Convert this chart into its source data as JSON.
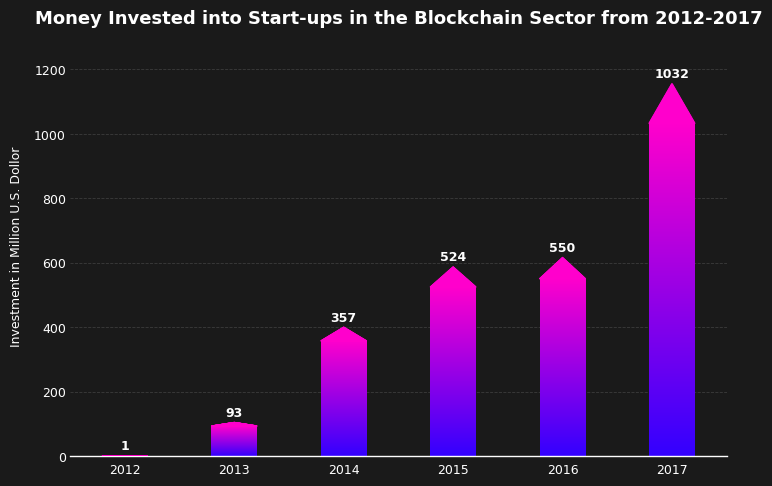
{
  "title": "Money Invested into Start-ups in the Blockchain Sector from 2012-2017",
  "ylabel": "Investment in Million U.S. Dollor",
  "categories": [
    "2012",
    "2013",
    "2014",
    "2015",
    "2016",
    "2017"
  ],
  "values": [
    1,
    93,
    357,
    524,
    550,
    1032
  ],
  "background_color": "#1a1a1a",
  "axes_background": "#1a1a1a",
  "bar_color_bottom": "#3300ff",
  "bar_color_top": "#ff00cc",
  "text_color": "#ffffff",
  "grid_color": "#444444",
  "ylim": [
    0,
    1300
  ],
  "yticks": [
    0,
    200,
    400,
    600,
    800,
    1000,
    1200
  ],
  "title_fontsize": 13,
  "label_fontsize": 9,
  "tick_fontsize": 9,
  "value_fontsize": 9,
  "bar_width": 0.42,
  "peak_ratio": 0.12
}
